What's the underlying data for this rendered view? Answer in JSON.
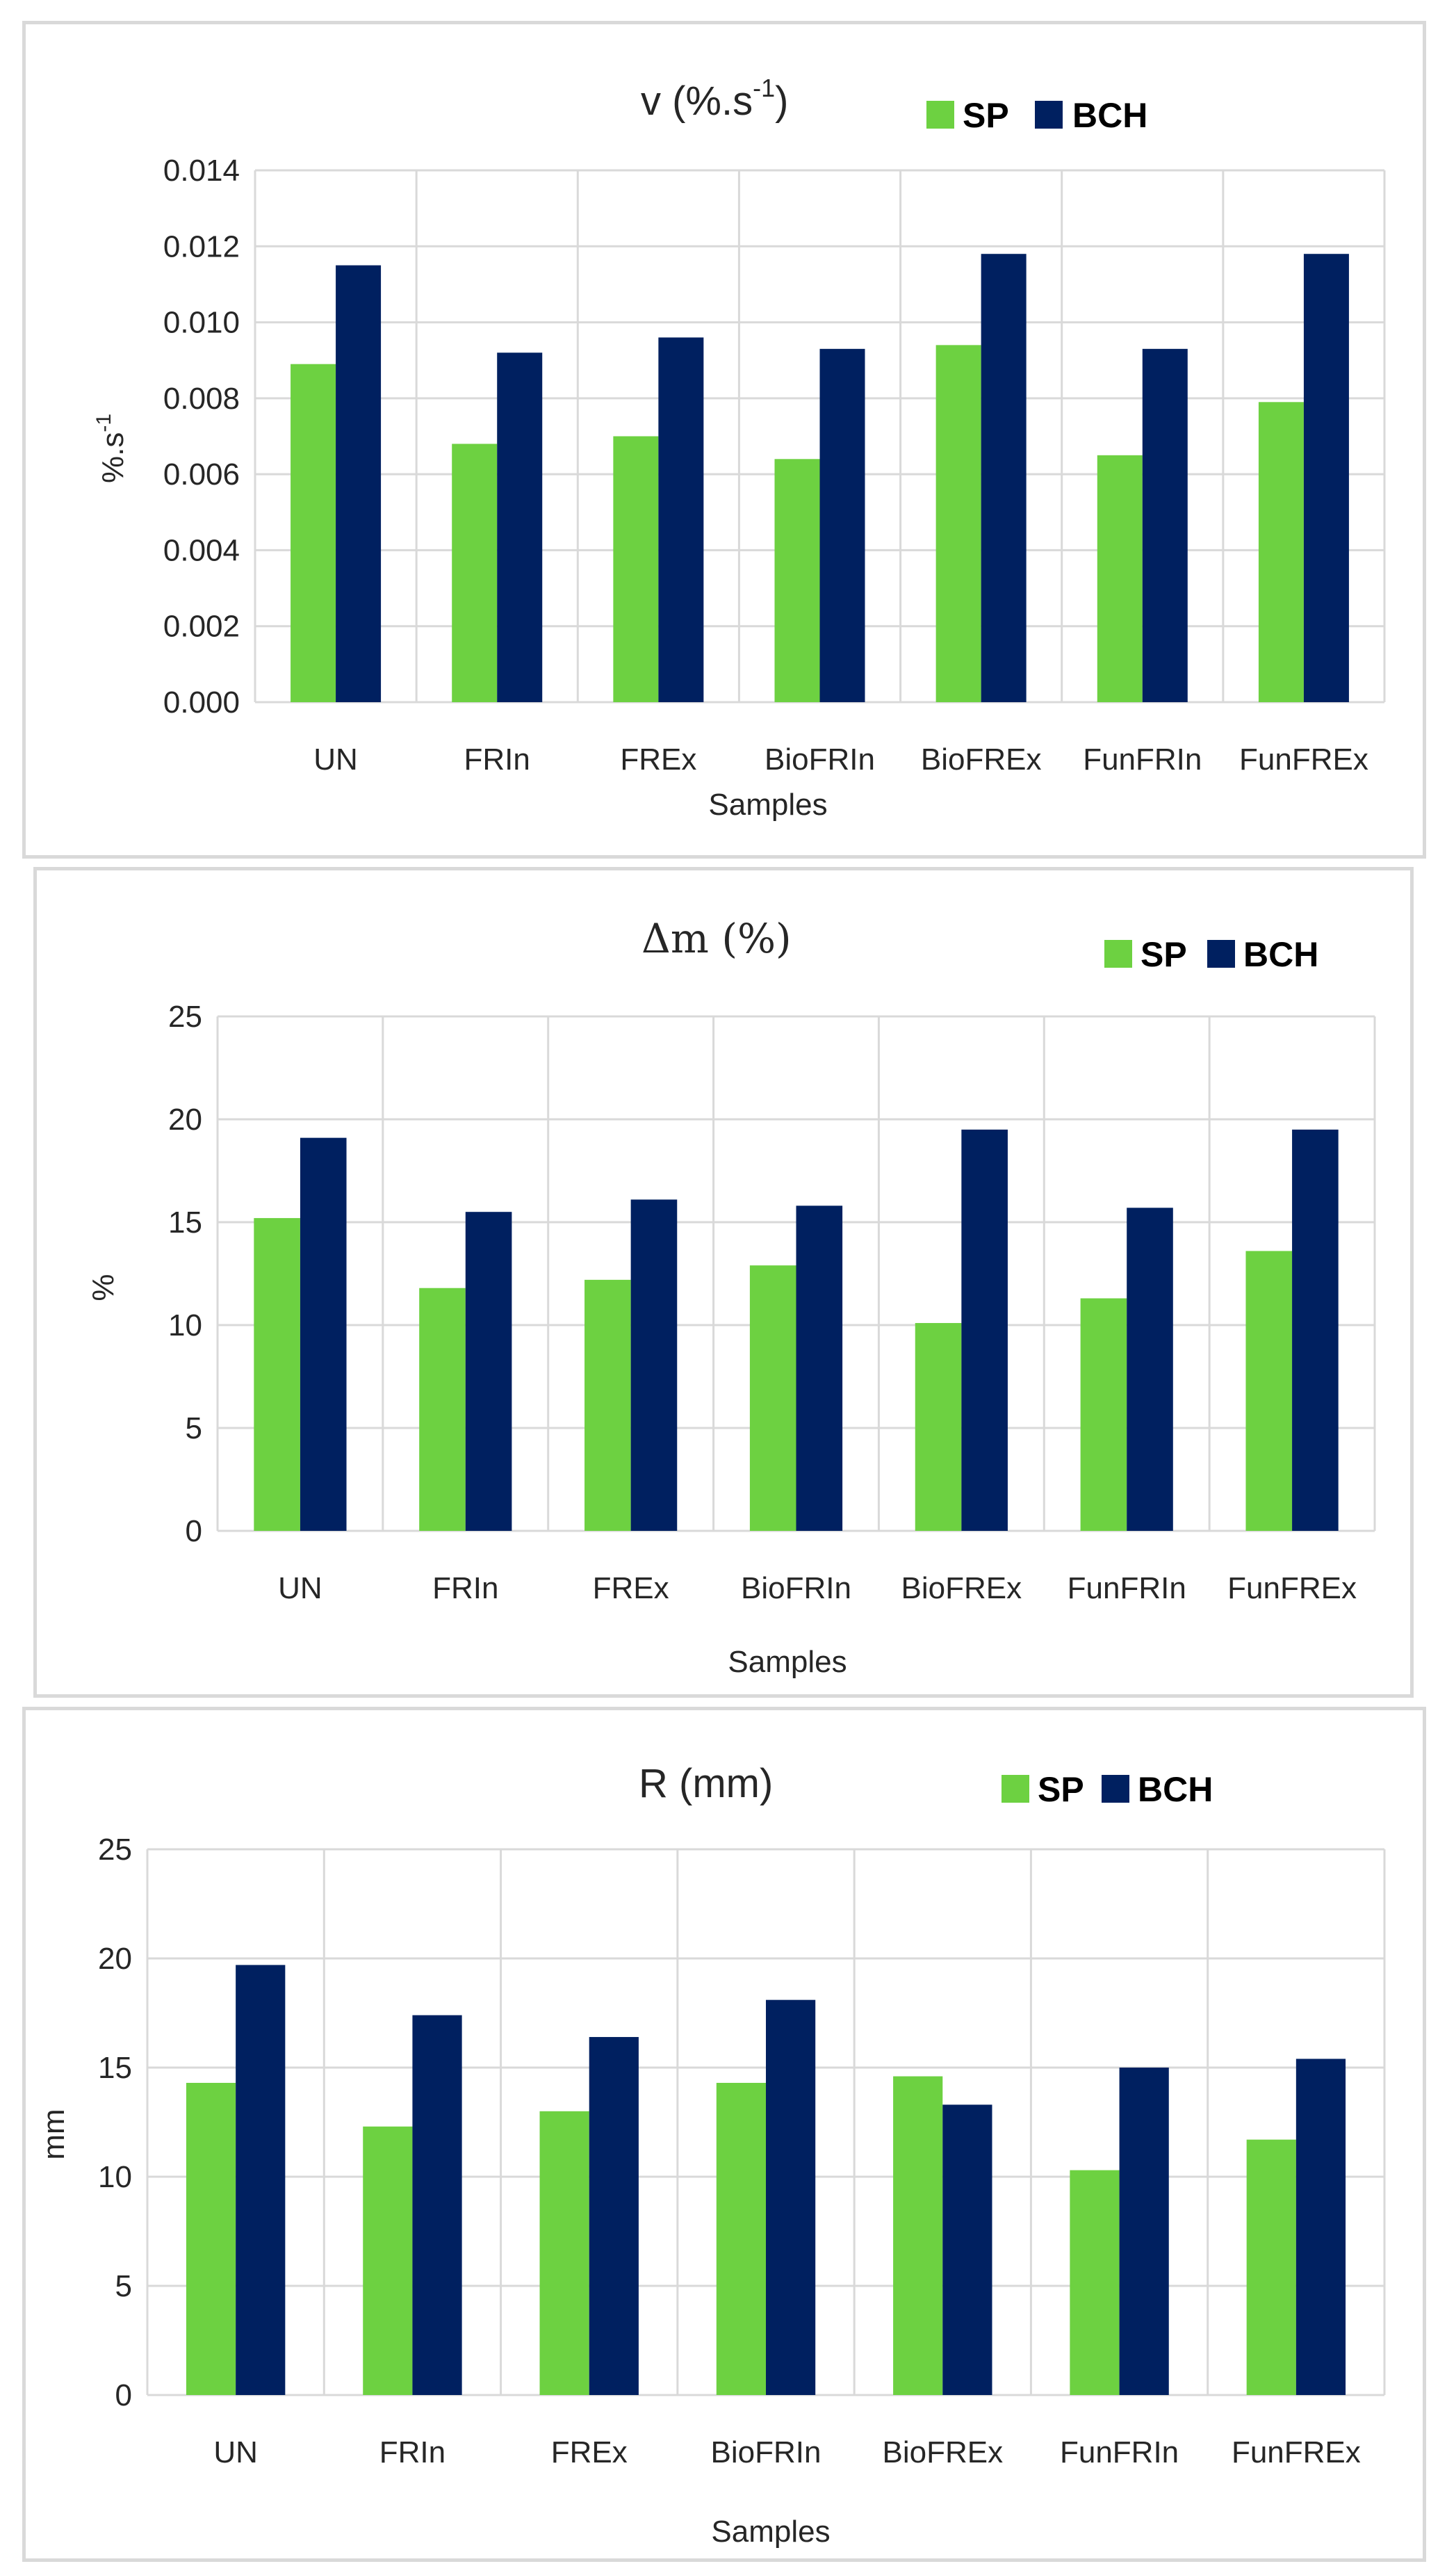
{
  "colors": {
    "SP": "#6dd141",
    "BCH": "#002060"
  },
  "chart_data": [
    {
      "type": "bar",
      "title": "v (%.s-1)",
      "title_main": "v (%.s",
      "title_sup": "-1",
      "title_end": ")",
      "xlabel": "Samples",
      "ylabel": "%.s-1",
      "ylabel_main": "%.s",
      "ylabel_sup": "-1",
      "ylim": [
        0,
        0.014
      ],
      "yticks": [
        0,
        0.002,
        0.004,
        0.006,
        0.008,
        0.01,
        0.012,
        0.014
      ],
      "ytick_labels": [
        "0.000",
        "0.002",
        "0.004",
        "0.006",
        "0.008",
        "0.010",
        "0.012",
        "0.014"
      ],
      "categories": [
        "UN",
        "FRIn",
        "FREx",
        "BioFRIn",
        "BioFREx",
        "FunFRIn",
        "FunFREx"
      ],
      "series": [
        {
          "name": "SP",
          "values": [
            0.0089,
            0.0068,
            0.007,
            0.0064,
            0.0094,
            0.0065,
            0.0079
          ]
        },
        {
          "name": "BCH",
          "values": [
            0.0115,
            0.0092,
            0.0096,
            0.0093,
            0.0118,
            0.0093,
            0.0118
          ]
        }
      ],
      "legend": "top-right"
    },
    {
      "type": "bar",
      "title": "Δm (%)",
      "xlabel": "Samples",
      "ylabel": "%",
      "ylim": [
        0,
        25
      ],
      "yticks": [
        0,
        5,
        10,
        15,
        20,
        25
      ],
      "ytick_labels": [
        "0",
        "5",
        "10",
        "15",
        "20",
        "25"
      ],
      "categories": [
        "UN",
        "FRIn",
        "FREx",
        "BioFRIn",
        "BioFREx",
        "FunFRIn",
        "FunFREx"
      ],
      "series": [
        {
          "name": "SP",
          "values": [
            15.2,
            11.8,
            12.2,
            12.9,
            10.1,
            11.3,
            13.6
          ]
        },
        {
          "name": "BCH",
          "values": [
            19.1,
            15.5,
            16.1,
            15.8,
            19.5,
            15.7,
            19.5
          ]
        }
      ],
      "legend": "top-right"
    },
    {
      "type": "bar",
      "title": "R (mm)",
      "xlabel": "Samples",
      "ylabel": "mm",
      "ylim": [
        0,
        25
      ],
      "yticks": [
        0,
        5,
        10,
        15,
        20,
        25
      ],
      "ytick_labels": [
        "0",
        "5",
        "10",
        "15",
        "20",
        "25"
      ],
      "categories": [
        "UN",
        "FRIn",
        "FREx",
        "BioFRIn",
        "BioFREx",
        "FunFRIn",
        "FunFREx"
      ],
      "series": [
        {
          "name": "SP",
          "values": [
            14.3,
            12.3,
            13.0,
            14.3,
            14.6,
            10.3,
            11.7
          ]
        },
        {
          "name": "BCH",
          "values": [
            19.7,
            17.4,
            16.4,
            18.1,
            13.3,
            15.0,
            15.4
          ]
        }
      ],
      "legend": "top-right"
    }
  ]
}
